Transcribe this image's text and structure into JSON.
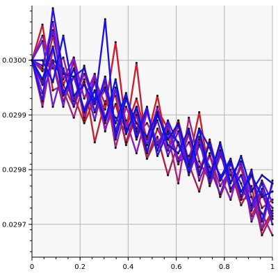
{
  "chart_data": {
    "type": "line",
    "title": "",
    "xlabel": "",
    "ylabel": "",
    "xlim": [
      0,
      1
    ],
    "ylim": [
      0.02964,
      0.0301
    ],
    "grid": true,
    "legend": "none",
    "x_ticks": [
      {
        "value": 0,
        "label": "0"
      },
      {
        "value": 0.2,
        "label": "0.2"
      },
      {
        "value": 0.4,
        "label": "0.4"
      },
      {
        "value": 0.6,
        "label": "0.6"
      },
      {
        "value": 0.8,
        "label": "0.8"
      },
      {
        "value": 1,
        "label": "1"
      }
    ],
    "y_ticks": [
      {
        "value": 0.03,
        "label": "0.0300"
      },
      {
        "value": 0.0299,
        "label": "0.0299"
      },
      {
        "value": 0.0298,
        "label": "0.0298"
      },
      {
        "value": 0.0297,
        "label": "0.0297"
      }
    ],
    "x": [
      0,
      0.0435,
      0.087,
      0.1304,
      0.1739,
      0.2174,
      0.2609,
      0.3043,
      0.3478,
      0.3913,
      0.4348,
      0.4783,
      0.5217,
      0.5652,
      0.6087,
      0.6522,
      0.6957,
      0.7391,
      0.7826,
      0.8261,
      0.8696,
      0.913,
      0.9565,
      1
    ],
    "series": [
      {
        "color": "#d01a2a",
        "values": [
          0.03,
          0.030035,
          0.029985,
          0.02998,
          0.029935,
          0.029885,
          0.02993,
          0.02991,
          0.030033,
          0.029875,
          0.02993,
          0.029855,
          0.029935,
          0.029835,
          0.02989,
          0.029815,
          0.029905,
          0.029785,
          0.029835,
          0.02976,
          0.029805,
          0.029715,
          0.029755,
          0.02971
        ]
      },
      {
        "color": "#c4202f",
        "values": [
          0.03,
          0.030065,
          0.029945,
          0.029955,
          0.029915,
          0.029965,
          0.02985,
          0.029925,
          0.029895,
          0.02987,
          0.029995,
          0.02983,
          0.02991,
          0.029875,
          0.02981,
          0.02987,
          0.029795,
          0.029855,
          0.02978,
          0.029815,
          0.029745,
          0.02979,
          0.02973,
          0.029745
        ]
      },
      {
        "color": "#b8203a",
        "values": [
          0.03,
          0.02996,
          0.030045,
          0.029955,
          0.029995,
          0.02989,
          0.029965,
          0.02992,
          0.029935,
          0.029845,
          0.0299,
          0.02982,
          0.029875,
          0.029835,
          0.02989,
          0.029795,
          0.02986,
          0.02977,
          0.029825,
          0.02979,
          0.029745,
          0.029795,
          0.02969,
          0.029725
        ]
      },
      {
        "color": "#a81f50",
        "values": [
          0.03,
          0.02998,
          0.03,
          0.029925,
          0.02997,
          0.029905,
          0.029945,
          0.029875,
          0.02992,
          0.02985,
          0.02991,
          0.02982,
          0.02986,
          0.02979,
          0.02985,
          0.02981,
          0.02976,
          0.02983,
          0.02975,
          0.0298,
          0.029735,
          0.02977,
          0.02968,
          0.02972
        ]
      },
      {
        "color": "#a3237e",
        "values": [
          0.03,
          0.029915,
          0.03002,
          0.029945,
          0.029895,
          0.02996,
          0.029905,
          0.02996,
          0.02984,
          0.029915,
          0.029865,
          0.029885,
          0.02985,
          0.029865,
          0.029775,
          0.029895,
          0.029815,
          0.02978,
          0.029845,
          0.02976,
          0.02979,
          0.02973,
          0.02976,
          0.02971
        ]
      },
      {
        "color": "#9a1f9a",
        "values": [
          0.03,
          0.030045,
          0.029985,
          0.030005,
          0.02993,
          0.029975,
          0.02992,
          0.029945,
          0.029865,
          0.029935,
          0.02987,
          0.02991,
          0.029835,
          0.029875,
          0.02982,
          0.02985,
          0.029805,
          0.029825,
          0.02977,
          0.0298,
          0.029745,
          0.02975,
          0.02972,
          0.02968
        ]
      },
      {
        "color": "#8f1ab4",
        "values": [
          0.03,
          0.029985,
          0.03007,
          0.029965,
          0.030005,
          0.029895,
          0.029975,
          0.02987,
          0.029945,
          0.02989,
          0.02983,
          0.029905,
          0.029845,
          0.02988,
          0.02981,
          0.029865,
          0.02978,
          0.029825,
          0.02979,
          0.029745,
          0.029815,
          0.029705,
          0.029755,
          0.02973
        ]
      },
      {
        "color": "#7f1fc3",
        "values": [
          0.03,
          0.02994,
          0.029995,
          0.029915,
          0.030005,
          0.02993,
          0.029975,
          0.029895,
          0.029945,
          0.029875,
          0.0299,
          0.029845,
          0.029915,
          0.029835,
          0.02988,
          0.029805,
          0.02985,
          0.029795,
          0.029835,
          0.02976,
          0.02981,
          0.02975,
          0.02969,
          0.02978
        ]
      },
      {
        "color": "#6a1fcf",
        "values": [
          0.03,
          0.030035,
          0.029915,
          0.029985,
          0.029925,
          0.02996,
          0.02989,
          0.02997,
          0.02986,
          0.02993,
          0.029875,
          0.029905,
          0.029845,
          0.029885,
          0.029815,
          0.029825,
          0.029855,
          0.029775,
          0.02983,
          0.02979,
          0.029815,
          0.02973,
          0.02978,
          0.02974
        ]
      },
      {
        "color": "#5a1ad8",
        "values": [
          0.03,
          0.02999,
          0.030055,
          0.02994,
          0.02997,
          0.02991,
          0.02996,
          0.029885,
          0.02995,
          0.029865,
          0.029915,
          0.029845,
          0.02989,
          0.029825,
          0.02987,
          0.02979,
          0.029845,
          0.029805,
          0.029755,
          0.02981,
          0.029775,
          0.029725,
          0.029765,
          0.0297
        ]
      },
      {
        "color": "#3f18e0",
        "values": [
          0.03,
          0.029955,
          0.03,
          0.029985,
          0.029915,
          0.02999,
          0.029905,
          0.02997,
          0.02987,
          0.029935,
          0.029855,
          0.02991,
          0.029835,
          0.02989,
          0.029845,
          0.029805,
          0.029875,
          0.029775,
          0.029835,
          0.029765,
          0.02979,
          0.029735,
          0.029775,
          0.029715
        ]
      },
      {
        "color": "#2614e2",
        "values": [
          0.03,
          0.029925,
          0.030095,
          0.029975,
          0.02997,
          0.029985,
          0.029925,
          0.02995,
          0.029885,
          0.02994,
          0.02986,
          0.029915,
          0.029825,
          0.02987,
          0.02985,
          0.029795,
          0.029875,
          0.02984,
          0.029785,
          0.02982,
          0.02975,
          0.0298,
          0.029705,
          0.029775
        ]
      },
      {
        "color": "#1612e0",
        "values": [
          0.03,
          0.03,
          0.02996,
          0.030045,
          0.029935,
          0.029955,
          0.02992,
          0.030075,
          0.029855,
          0.02993,
          0.029885,
          0.02986,
          0.029905,
          0.029845,
          0.02983,
          0.029875,
          0.02979,
          0.02985,
          0.02978,
          0.029815,
          0.02976,
          0.02979,
          0.02975,
          0.02976
        ]
      },
      {
        "color": "#0e10dc",
        "values": [
          0.03,
          0.029965,
          0.030025,
          0.029935,
          0.029985,
          0.029905,
          0.029945,
          0.02989,
          0.029965,
          0.029865,
          0.029915,
          0.02983,
          0.0299,
          0.029855,
          0.029885,
          0.02981,
          0.029875,
          0.029785,
          0.02985,
          0.029775,
          0.029825,
          0.02976,
          0.02979,
          0.029775
        ]
      }
    ]
  }
}
